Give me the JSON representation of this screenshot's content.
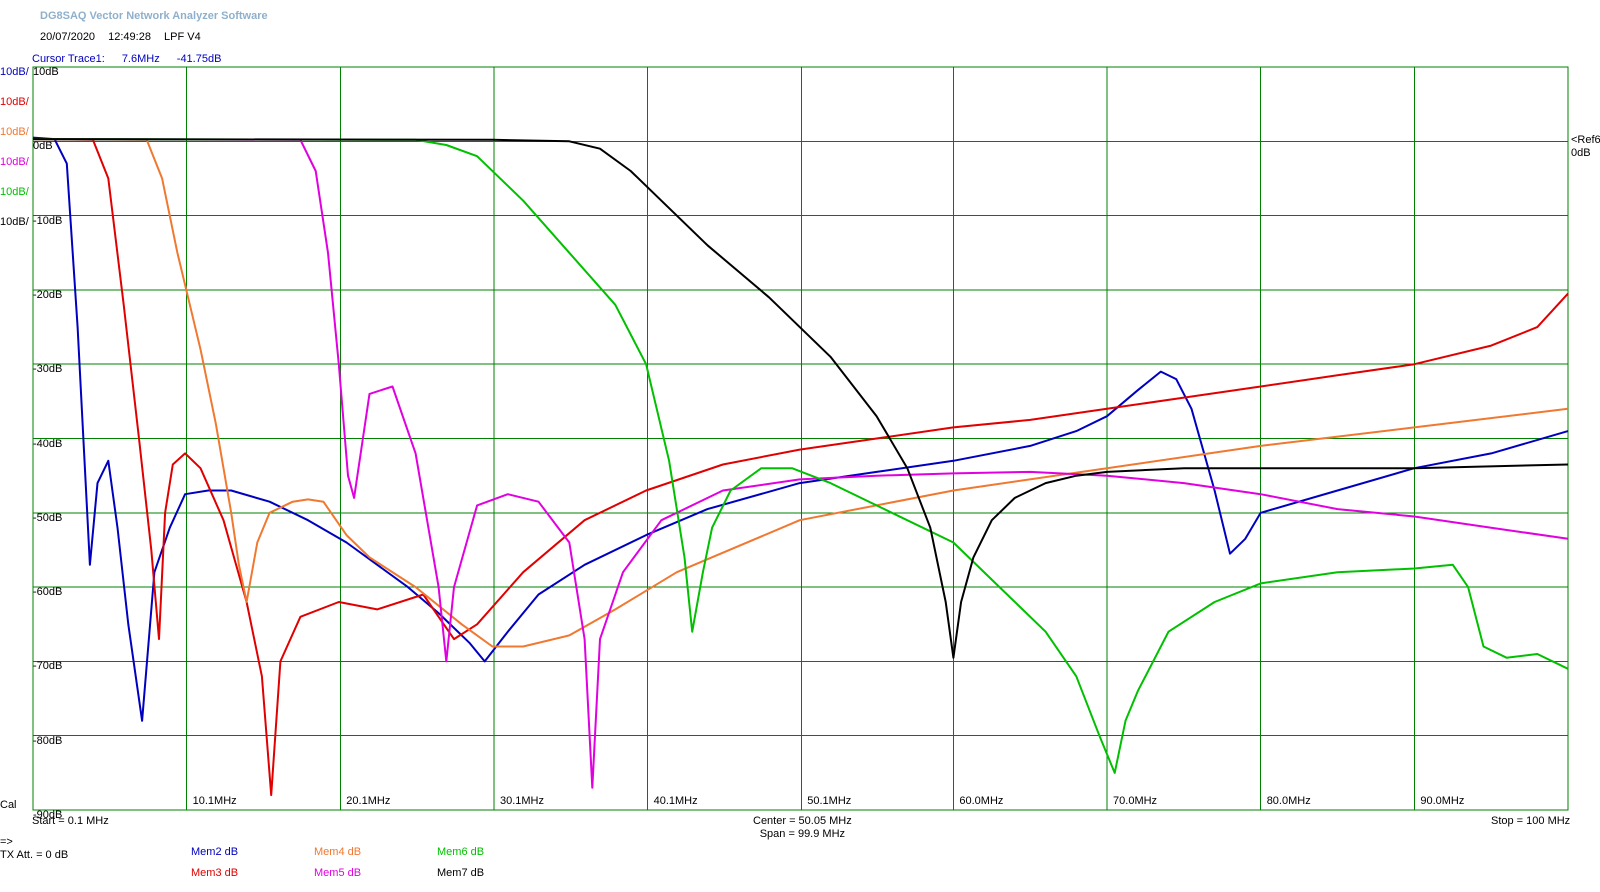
{
  "app_title": "DG8SAQ Vector Network Analyzer Software",
  "header": {
    "date": "20/07/2020",
    "time": "12:49:28",
    "label": "LPF V4"
  },
  "cursor": {
    "label": "Cursor Trace1:",
    "freq": "7.6MHz",
    "value": "-41.75dB"
  },
  "scale_labels": [
    {
      "text": "10dB/",
      "color": "#0000c0"
    },
    {
      "text": "10dB/",
      "color": "#e00000"
    },
    {
      "text": "10dB/",
      "color": "#f07830"
    },
    {
      "text": "10dB/",
      "color": "#e000e0"
    },
    {
      "text": "10dB/",
      "color": "#00c000"
    },
    {
      "text": "10dB/",
      "color": "#000000"
    }
  ],
  "ref_label": {
    "line1": "<Ref6",
    "line2": "0dB"
  },
  "cal_label": "Cal",
  "footer": {
    "start": "Start = 0.1 MHz",
    "center": "Center = 50.05 MHz",
    "span": "Span = 99.9 MHz",
    "stop": "Stop = 100 MHz",
    "arrow": "=>",
    "tx_att": "TX Att.  = 0 dB"
  },
  "legend": [
    {
      "name": "Mem2 dB",
      "color": "#0000c0"
    },
    {
      "name": "Mem3 dB",
      "color": "#e00000"
    },
    {
      "name": "Mem4 dB",
      "color": "#f07830"
    },
    {
      "name": "Mem5 dB",
      "color": "#e000e0"
    },
    {
      "name": "Mem6 dB",
      "color": "#00c000"
    },
    {
      "name": "Mem7 dB",
      "color": "#000000"
    }
  ],
  "colors": {
    "grid": "#008000",
    "background": "#ffffff"
  },
  "chart_data": {
    "type": "line",
    "xlim": [
      0.1,
      100
    ],
    "ylim": [
      -90,
      10
    ],
    "grid": true,
    "y_tick_labels": [
      "10dB",
      "0dB",
      "-10dB",
      "-20dB",
      "-30dB",
      "-40dB",
      "-50dB",
      "-60dB",
      "-70dB",
      "-80dB",
      "-90dB"
    ],
    "x_ticks": [
      {
        "x": 10.1,
        "label": "10.1MHz"
      },
      {
        "x": 20.1,
        "label": "20.1MHz"
      },
      {
        "x": 30.1,
        "label": "30.1MHz"
      },
      {
        "x": 40.1,
        "label": "40.1MHz"
      },
      {
        "x": 50.1,
        "label": "50.1MHz"
      },
      {
        "x": 60.0,
        "label": "60.0MHz"
      },
      {
        "x": 70.0,
        "label": "70.0MHz"
      },
      {
        "x": 80.0,
        "label": "80.0MHz"
      },
      {
        "x": 90.0,
        "label": "90.0MHz"
      }
    ],
    "series": [
      {
        "name": "Mem2 dB",
        "color": "#0000c0",
        "x": [
          0.1,
          1.5,
          2.3,
          3.0,
          3.8,
          4.3,
          5.0,
          5.6,
          6.3,
          7.2,
          8.0,
          9.0,
          10.0,
          11.5,
          13.0,
          15.5,
          18.0,
          20.5,
          22.5,
          24.5,
          26.5,
          28.5,
          29.5,
          31.0,
          33.0,
          36.0,
          40.0,
          44.0,
          50.0,
          55.0,
          60.0,
          65.0,
          68.0,
          70.0,
          72.0,
          73.5,
          74.5,
          75.5,
          77.0,
          78.0,
          79.0,
          80.0,
          85.0,
          90.0,
          95.0,
          100.0
        ],
        "y": [
          0.5,
          0.3,
          -3,
          -25,
          -57,
          -46,
          -43,
          -52,
          -65,
          -78,
          -58,
          -52,
          -47.5,
          -47,
          -47,
          -48.5,
          -51,
          -54,
          -57,
          -60,
          -63.5,
          -67.5,
          -70,
          -66,
          -61,
          -57,
          -53,
          -49.5,
          -46,
          -44.5,
          -43,
          -41,
          -39,
          -37,
          -33.5,
          -31,
          -32,
          -36,
          -47,
          -55.5,
          -53.5,
          -50,
          -47,
          -44,
          -42,
          -39
        ]
      },
      {
        "name": "Mem3 dB",
        "color": "#e00000",
        "x": [
          0.1,
          4.0,
          5.0,
          6.0,
          7.0,
          7.8,
          8.3,
          8.7,
          9.2,
          10.0,
          11.0,
          12.5,
          14.0,
          15.0,
          15.6,
          16.2,
          17.5,
          20.0,
          22.5,
          25.5,
          26.5,
          27.5,
          29.0,
          32.0,
          36.0,
          40.0,
          45.0,
          50.0,
          55.0,
          60.0,
          65.0,
          70.0,
          75.0,
          80.0,
          85.0,
          90.0,
          95.0,
          98.0,
          100.0
        ],
        "y": [
          0.3,
          0.2,
          -5,
          -22,
          -40,
          -55,
          -67,
          -50,
          -43.5,
          -42,
          -44,
          -51,
          -62,
          -72,
          -88,
          -70,
          -64,
          -62,
          -63,
          -61,
          -64,
          -67,
          -65,
          -58,
          -51,
          -47,
          -43.5,
          -41.5,
          -40,
          -38.5,
          -37.5,
          -36,
          -34.5,
          -33,
          -31.5,
          -30,
          -27.5,
          -25,
          -20.5
        ]
      },
      {
        "name": "Mem4 dB",
        "color": "#f07830",
        "x": [
          0.1,
          7.5,
          8.5,
          9.5,
          11.0,
          12.0,
          13.0,
          13.5,
          14.0,
          14.7,
          15.5,
          17.0,
          18.0,
          19.0,
          20.5,
          22.0,
          25.0,
          28.0,
          30.0,
          32.0,
          35.0,
          38.0,
          42.0,
          50.0,
          60.0,
          70.0,
          80.0,
          90.0,
          100.0
        ],
        "y": [
          0.3,
          0.2,
          -5,
          -15,
          -28,
          -38,
          -50,
          -57,
          -62,
          -54,
          -50,
          -48.5,
          -48.2,
          -48.5,
          -53,
          -56,
          -60,
          -65,
          -68,
          -68,
          -66.5,
          -63,
          -58,
          -51,
          -47,
          -44,
          -41,
          -38.5,
          -36
        ]
      },
      {
        "name": "Mem5 dB",
        "color": "#e000e0",
        "x": [
          0.1,
          17.5,
          18.5,
          19.3,
          20.0,
          20.6,
          21.0,
          22.0,
          23.5,
          25.0,
          26.5,
          27.0,
          27.5,
          29.0,
          31.0,
          33.0,
          35.0,
          36.0,
          36.5,
          37.0,
          38.5,
          41.0,
          45.0,
          50.0,
          55.0,
          60.0,
          65.0,
          70.0,
          75.0,
          80.0,
          85.0,
          90.0,
          95.0,
          100.0
        ],
        "y": [
          0.3,
          0.2,
          -4,
          -15,
          -30,
          -45,
          -48,
          -34,
          -33,
          -42,
          -60,
          -70,
          -60,
          -49,
          -47.5,
          -48.5,
          -54,
          -67,
          -87,
          -67,
          -58,
          -51,
          -47,
          -45.5,
          -45,
          -44.7,
          -44.5,
          -45,
          -46,
          -47.5,
          -49.5,
          -50.5,
          -52,
          -53.5
        ]
      },
      {
        "name": "Mem6 dB",
        "color": "#00c000",
        "x": [
          0.1,
          25.0,
          27.0,
          29.0,
          32.0,
          35.0,
          38.0,
          40.0,
          41.5,
          42.5,
          43.0,
          43.7,
          44.3,
          45.5,
          47.5,
          49.5,
          52.0,
          56.0,
          60.0,
          63.0,
          66.0,
          68.0,
          69.5,
          70.5,
          71.2,
          72.0,
          74.0,
          77.0,
          80.0,
          85.0,
          90.0,
          92.5,
          93.5,
          94.5,
          96.0,
          98.0,
          100.0
        ],
        "y": [
          0.3,
          0.2,
          -0.5,
          -2,
          -8,
          -15,
          -22,
          -30,
          -43,
          -56,
          -66,
          -58,
          -52,
          -47,
          -44,
          -44,
          -46,
          -50,
          -54,
          -60,
          -66,
          -72,
          -80,
          -85,
          -78,
          -74,
          -66,
          -62,
          -59.5,
          -58,
          -57.5,
          -57,
          -60,
          -68,
          -69.5,
          -69,
          -71
        ]
      },
      {
        "name": "Mem7 dB",
        "color": "#000000",
        "x": [
          0.1,
          30.0,
          35.0,
          37.0,
          39.0,
          41.0,
          44.0,
          48.0,
          52.0,
          55.0,
          57.0,
          58.5,
          59.5,
          60.0,
          60.5,
          61.3,
          62.5,
          64.0,
          66.0,
          68.0,
          70.0,
          75.0,
          80.0,
          90.0,
          100.0
        ],
        "y": [
          0.3,
          0.2,
          0.0,
          -1.0,
          -4,
          -8,
          -14,
          -21,
          -29,
          -37,
          -44,
          -52,
          -62,
          -69.5,
          -62,
          -56,
          -51,
          -48,
          -46,
          -45,
          -44.5,
          -44,
          -44,
          -44,
          -43.5
        ]
      }
    ]
  }
}
